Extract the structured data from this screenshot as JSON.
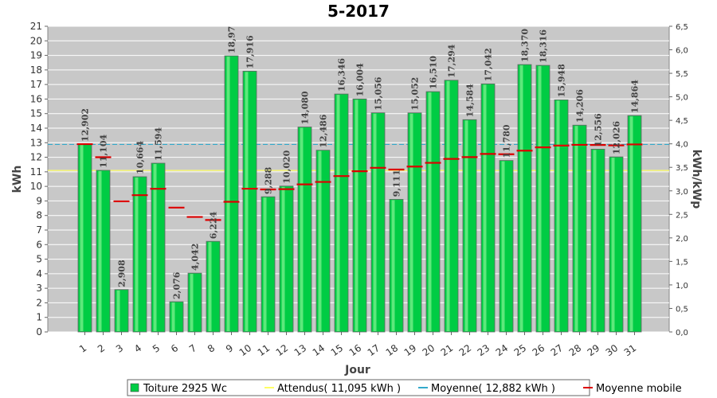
{
  "chart_data": {
    "type": "bar",
    "title": "5-2017",
    "xlabel": "Jour",
    "ylabel": "kWh",
    "y2label": "kWh/kWp",
    "ylim": [
      0,
      21
    ],
    "y2lim": [
      0,
      6.5
    ],
    "y2_ticks": [
      "0,0",
      "0,5",
      "1,0",
      "1,5",
      "2,0",
      "2,5",
      "3,0",
      "3,5",
      "4,0",
      "4,5",
      "5,0",
      "5,5",
      "6,0",
      "6,5"
    ],
    "grid": true,
    "legend_position": "bottom",
    "categories": [
      "1",
      "2",
      "3",
      "4",
      "5",
      "6",
      "7",
      "8",
      "9",
      "10",
      "11",
      "12",
      "13",
      "14",
      "15",
      "16",
      "17",
      "18",
      "19",
      "20",
      "21",
      "22",
      "23",
      "24",
      "25",
      "26",
      "27",
      "28",
      "29",
      "30",
      "31"
    ],
    "series": [
      {
        "name": "Toiture 2925 Wc",
        "type": "bar",
        "color": "#00cc44",
        "values": [
          12.902,
          11.104,
          2.908,
          10.664,
          11.594,
          2.076,
          4.042,
          6.224,
          18.97,
          17.916,
          9.288,
          10.02,
          14.08,
          12.486,
          16.346,
          16.004,
          15.056,
          9.111,
          15.052,
          16.51,
          17.294,
          14.584,
          17.042,
          11.78,
          18.37,
          18.316,
          15.948,
          14.206,
          12.556,
          12.026,
          14.864
        ],
        "labels": [
          "12,902",
          "11,104",
          "2,908",
          "10,664",
          "11,594",
          "2,076",
          "4,042",
          "6,224",
          "18,97",
          "17,916",
          "9,288",
          "10,020",
          "14,080",
          "12,486",
          "16,346",
          "16,004",
          "15,056",
          "9,111",
          "15,052",
          "16,510",
          "17,294",
          "14,584",
          "17,042",
          "11,780",
          "18,370",
          "18,316",
          "15,948",
          "14,206",
          "12,556",
          "12,026",
          "14,864"
        ]
      },
      {
        "name": "Attendus( 11,095 kWh )",
        "type": "hline",
        "color": "#ffff66",
        "value": 11.095
      },
      {
        "name": "Moyenne( 12,882 kWh )",
        "type": "hline",
        "color": "#33aacc",
        "value": 12.882
      },
      {
        "name": "Moyenne mobile",
        "type": "marker",
        "color": "#dd0000",
        "values": [
          12.902,
          12.003,
          8.971,
          9.395,
          9.834,
          8.541,
          7.898,
          7.689,
          8.943,
          9.84,
          9.79,
          9.809,
          10.137,
          10.305,
          10.708,
          11.039,
          11.275,
          11.155,
          11.36,
          11.618,
          11.888,
          12.01,
          12.229,
          12.21,
          12.457,
          12.682,
          12.803,
          12.854,
          12.844,
          12.817,
          12.882
        ]
      }
    ]
  },
  "legend": {
    "items": [
      {
        "label": "Toiture 2925 Wc",
        "color": "#00cc44",
        "kind": "square"
      },
      {
        "label": "Attendus( 11,095 kWh )",
        "color": "#ffff66",
        "kind": "line"
      },
      {
        "label": "Moyenne( 12,882 kWh )",
        "color": "#33aacc",
        "kind": "line"
      },
      {
        "label": "Moyenne mobile",
        "color": "#dd0000",
        "kind": "line"
      }
    ]
  }
}
